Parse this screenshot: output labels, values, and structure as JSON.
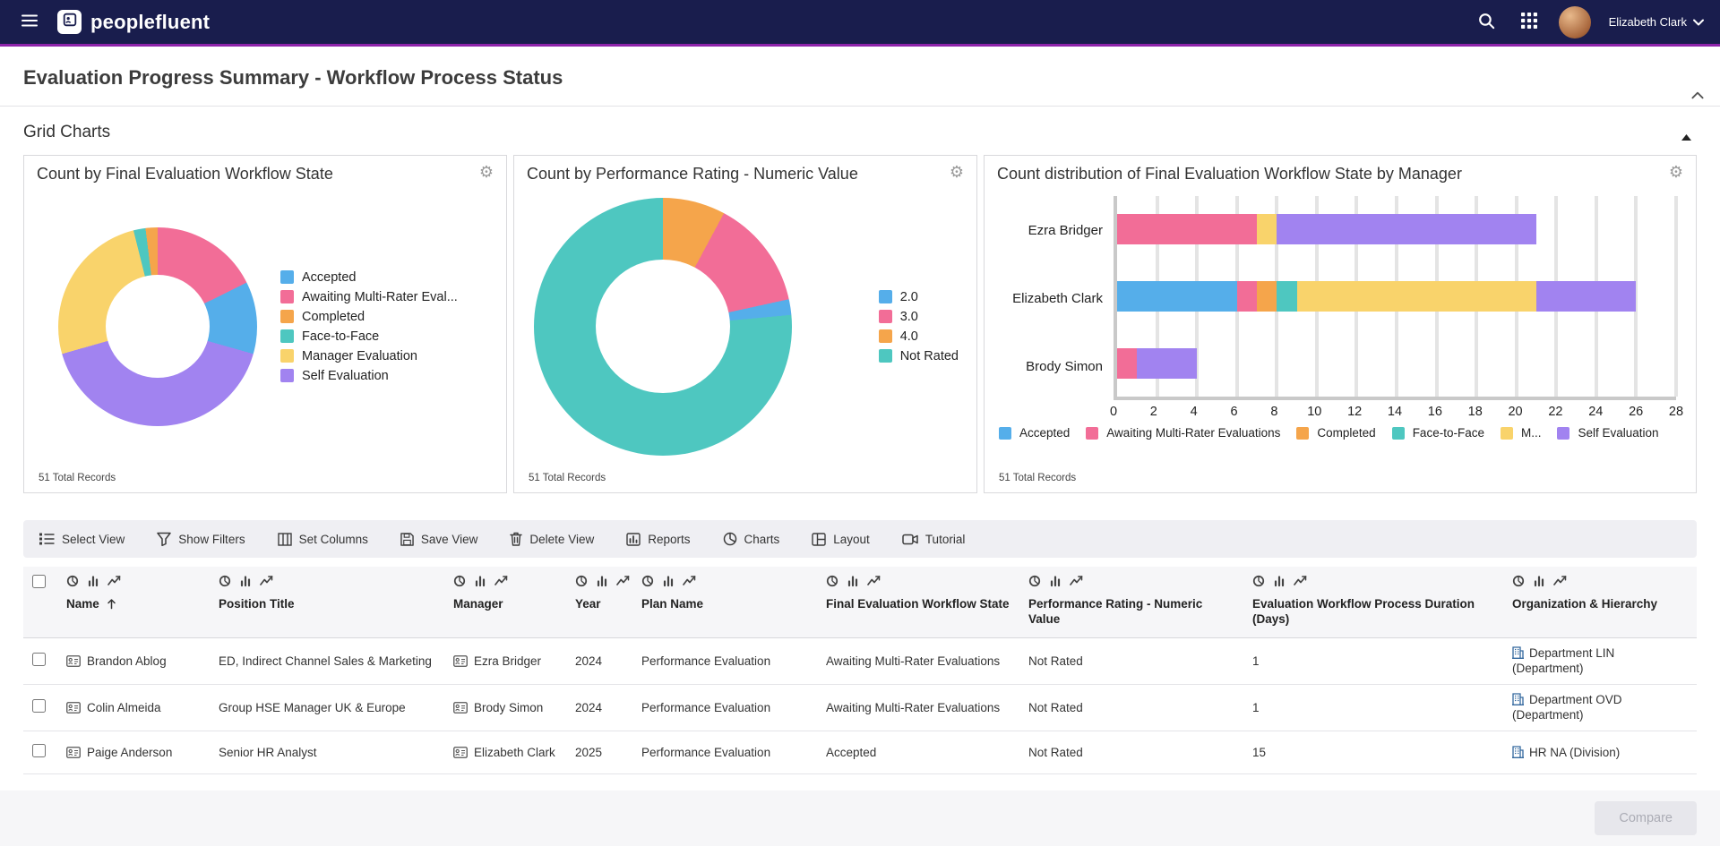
{
  "navbar": {
    "brand": "peoplefluent",
    "user": {
      "name": "Elizabeth Clark"
    }
  },
  "page": {
    "title": "Evaluation Progress Summary - Workflow Process Status",
    "section": "Grid Charts"
  },
  "colors": {
    "navbar_bg": "#191d4d",
    "accent_line": "#8e24aa",
    "blue": "#55aeea",
    "pink": "#f26d97",
    "orange": "#f5a54b",
    "teal": "#4ec7c0",
    "yellow": "#f9d36b",
    "purple": "#a183f0",
    "link_blue": "#33689e"
  },
  "chart_data": [
    {
      "type": "pie",
      "title": "Count by Final Evaluation Workflow State",
      "total": 51,
      "total_records": "51 Total Records",
      "legend_position": "right",
      "hole": 0.52,
      "legend": [
        {
          "label": "Accepted",
          "color": "#55aeea",
          "value": 6
        },
        {
          "label": "Awaiting Multi-Rater Eval...",
          "color": "#f26d97",
          "value": 9
        },
        {
          "label": "Completed",
          "color": "#f5a54b",
          "value": 1
        },
        {
          "label": "Face-to-Face",
          "color": "#4ec7c0",
          "value": 1
        },
        {
          "label": "Manager Evaluation",
          "color": "#f9d36b",
          "value": 13
        },
        {
          "label": "Self Evaluation",
          "color": "#a183f0",
          "value": 21
        }
      ],
      "draw_order": [
        1,
        0,
        5,
        4,
        3,
        2
      ]
    },
    {
      "type": "pie",
      "title": "Count by Performance Rating - Numeric Value",
      "total": 51,
      "total_records": "51 Total Records",
      "legend_position": "right",
      "hole": 0.52,
      "legend": [
        {
          "label": "2.0",
          "color": "#55aeea",
          "value": 1
        },
        {
          "label": "3.0",
          "color": "#f26d97",
          "value": 7
        },
        {
          "label": "4.0",
          "color": "#f5a54b",
          "value": 4
        },
        {
          "label": "Not Rated",
          "color": "#4ec7c0",
          "value": 39
        }
      ],
      "draw_order": [
        2,
        1,
        0,
        3
      ]
    },
    {
      "type": "bar",
      "orientation": "horizontal",
      "stacked": true,
      "title": "Count distribution of Final Evaluation Workflow State by Manager",
      "total": 51,
      "total_records": "51 Total Records",
      "legend_position": "bottom",
      "categories": [
        "Ezra Bridger",
        "Elizabeth Clark",
        "Brody Simon"
      ],
      "series": [
        {
          "name": "Accepted",
          "color": "#55aeea",
          "values": [
            0,
            6,
            0
          ]
        },
        {
          "name": "Awaiting Multi-Rater Evaluations",
          "color": "#f26d97",
          "values": [
            7,
            1,
            1
          ]
        },
        {
          "name": "Completed",
          "color": "#f5a54b",
          "values": [
            0,
            1,
            0
          ]
        },
        {
          "name": "Face-to-Face",
          "color": "#4ec7c0",
          "values": [
            0,
            1,
            0
          ]
        },
        {
          "name": "Manager Evaluation",
          "display": "M...",
          "color": "#f9d36b",
          "values": [
            1,
            12,
            0
          ]
        },
        {
          "name": "Self Evaluation",
          "color": "#a183f0",
          "values": [
            13,
            5,
            3
          ]
        }
      ],
      "xaxis": {
        "min": 0,
        "max": 28,
        "step": 2
      }
    }
  ],
  "toolbar": [
    {
      "label": "Select View",
      "icon": "select-view-icon"
    },
    {
      "label": "Show Filters",
      "icon": "filter-icon"
    },
    {
      "label": "Set Columns",
      "icon": "columns-icon"
    },
    {
      "label": "Save View",
      "icon": "save-icon"
    },
    {
      "label": "Delete View",
      "icon": "trash-icon"
    },
    {
      "label": "Reports",
      "icon": "reports-icon"
    },
    {
      "label": "Charts",
      "icon": "charts-icon"
    },
    {
      "label": "Layout",
      "icon": "layout-icon"
    },
    {
      "label": "Tutorial",
      "icon": "tutorial-icon"
    }
  ],
  "table": {
    "columns": [
      {
        "key": "name",
        "label": "Name",
        "sort": "asc"
      },
      {
        "key": "position",
        "label": "Position Title"
      },
      {
        "key": "manager",
        "label": "Manager"
      },
      {
        "key": "year",
        "label": "Year"
      },
      {
        "key": "plan",
        "label": "Plan Name"
      },
      {
        "key": "state",
        "label": "Final Evaluation Workflow State"
      },
      {
        "key": "rating",
        "label": "Performance Rating - Numeric Value"
      },
      {
        "key": "duration",
        "label": "Evaluation Workflow Process Duration (Days)"
      },
      {
        "key": "organization",
        "label": "Organization & Hierarchy"
      }
    ],
    "rows": [
      {
        "name": "Brandon Ablog",
        "position": "ED, Indirect Channel Sales & Marketing",
        "manager": "Ezra Bridger",
        "year": "2024",
        "plan": "Performance Evaluation",
        "state": "Awaiting Multi-Rater Evaluations",
        "rating": "Not Rated",
        "duration": "1",
        "organization": "Department LIN (Department)"
      },
      {
        "name": "Colin Almeida",
        "position": "Group HSE Manager UK & Europe",
        "manager": "Brody Simon",
        "year": "2024",
        "plan": "Performance Evaluation",
        "state": "Awaiting Multi-Rater Evaluations",
        "rating": "Not Rated",
        "duration": "1",
        "organization": "Department OVD (Department)"
      },
      {
        "name": "Paige Anderson",
        "position": "Senior HR Analyst",
        "manager": "Elizabeth Clark",
        "year": "2025",
        "plan": "Performance Evaluation",
        "state": "Accepted",
        "rating": "Not Rated",
        "duration": "15",
        "organization": "HR NA (Division)"
      }
    ]
  },
  "footer": {
    "compare_label": "Compare"
  }
}
